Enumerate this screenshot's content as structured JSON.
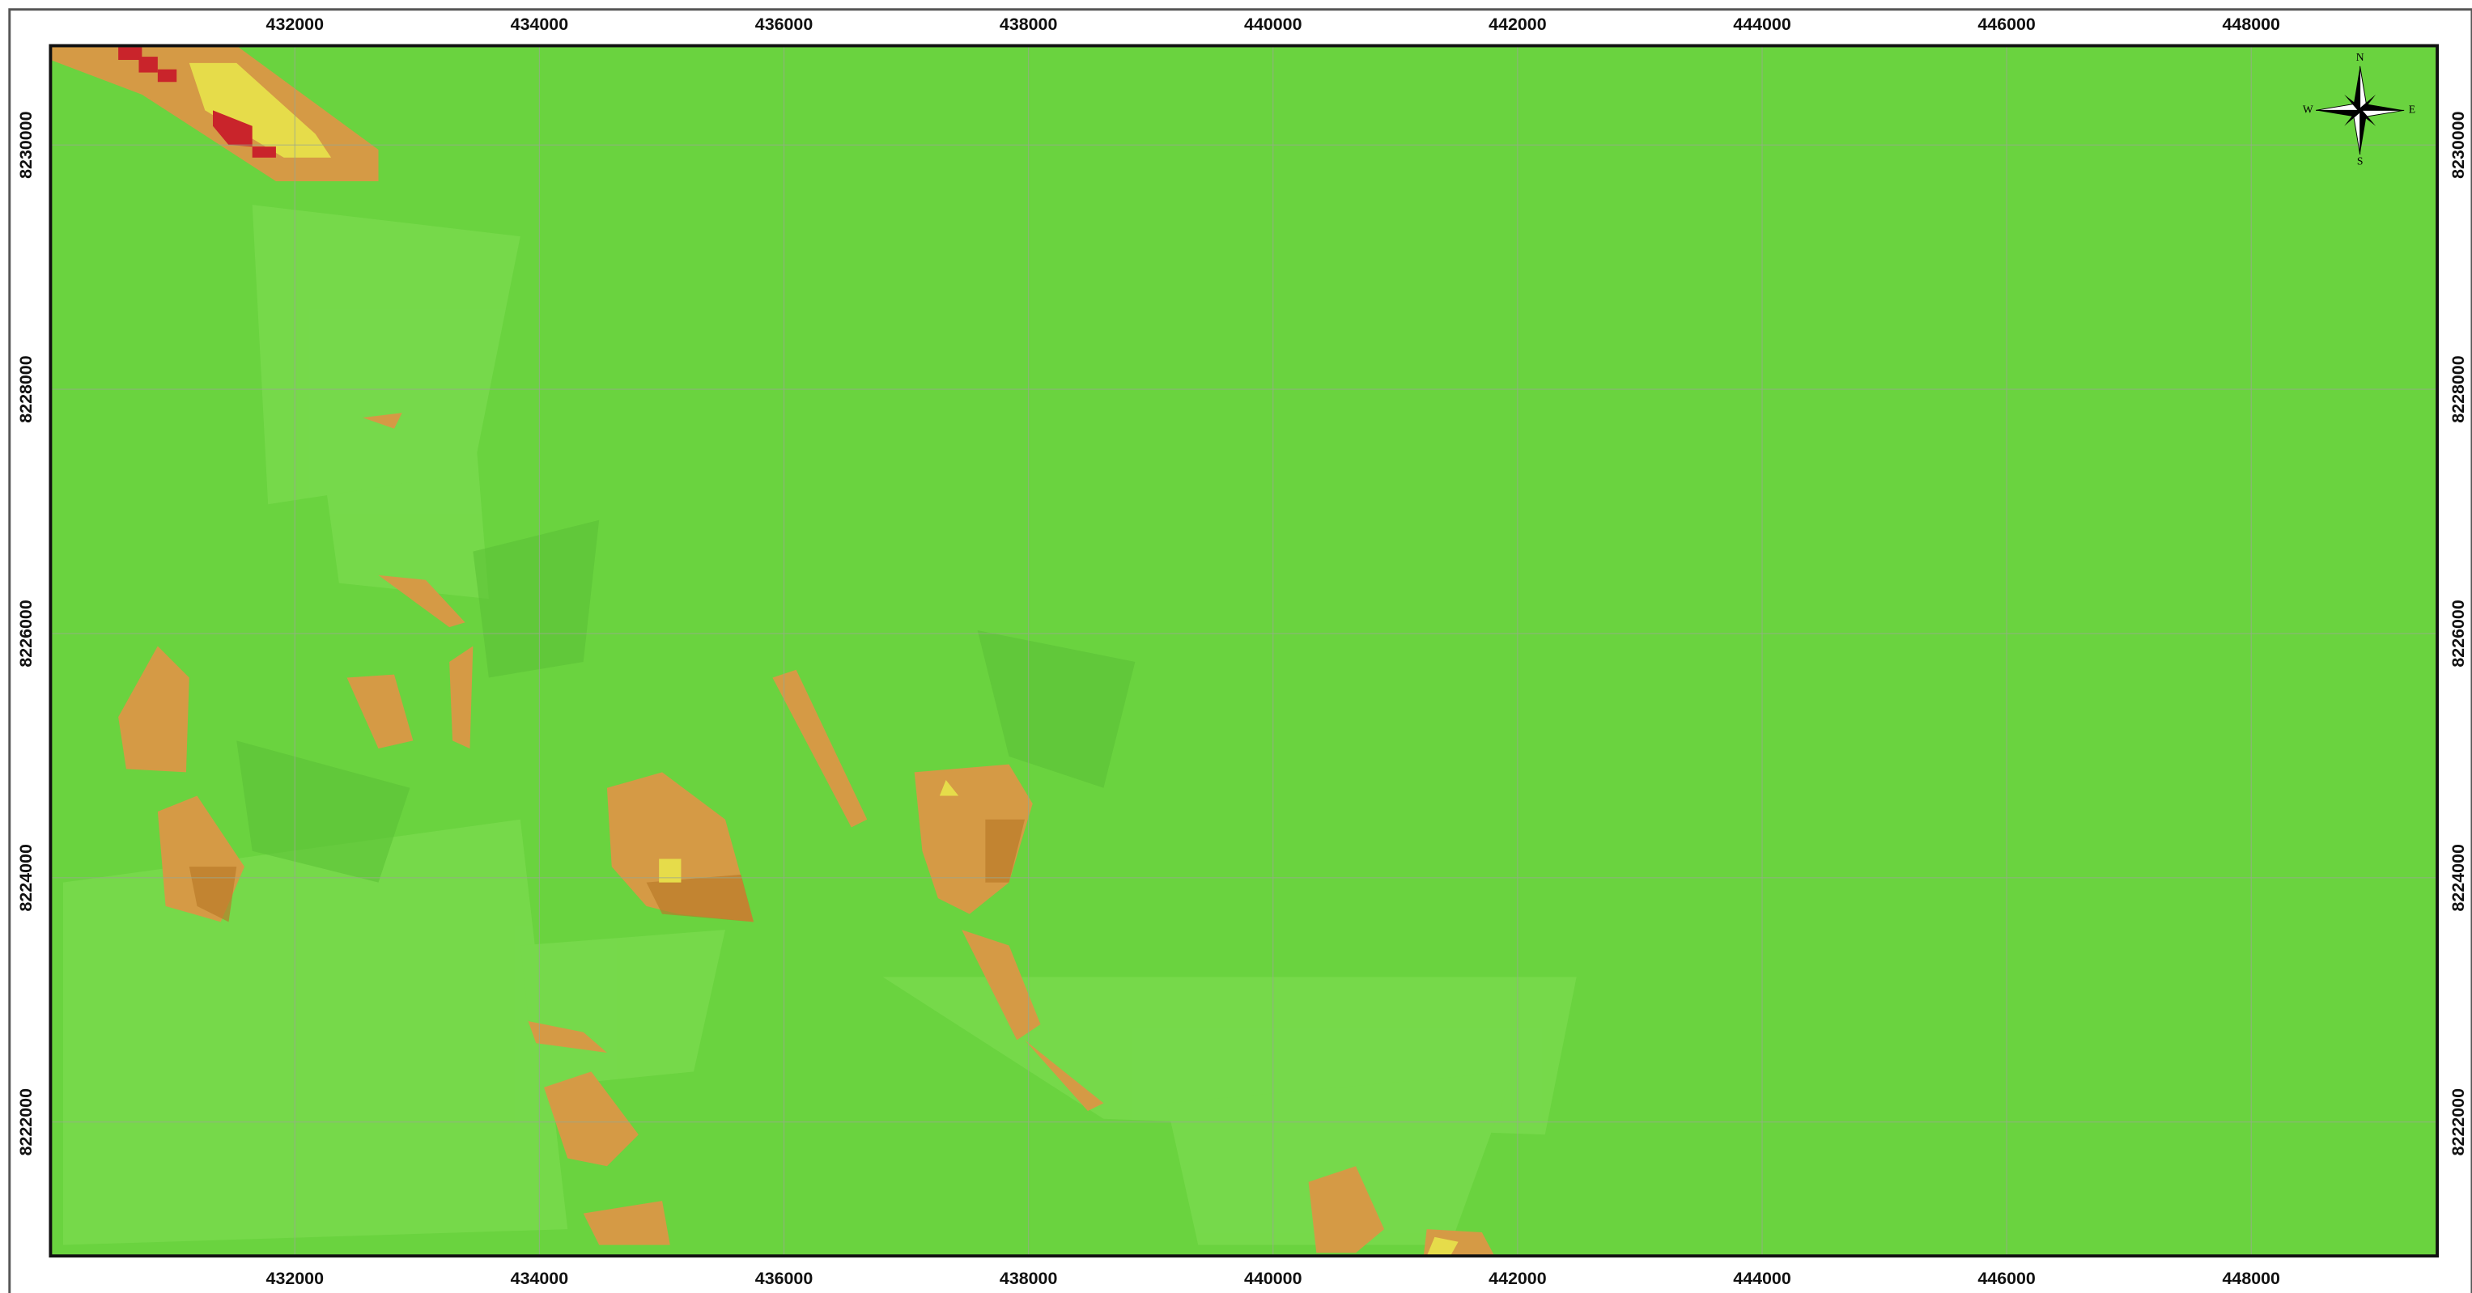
{
  "map": {
    "x_ticks": [
      432000,
      434000,
      436000,
      438000,
      440000,
      442000,
      444000,
      446000,
      448000
    ],
    "y_ticks": [
      8222000,
      8224000,
      8226000,
      8228000,
      8230000
    ],
    "compass": {
      "north": "N",
      "south": "S",
      "east": "E",
      "west": "W"
    }
  }
}
